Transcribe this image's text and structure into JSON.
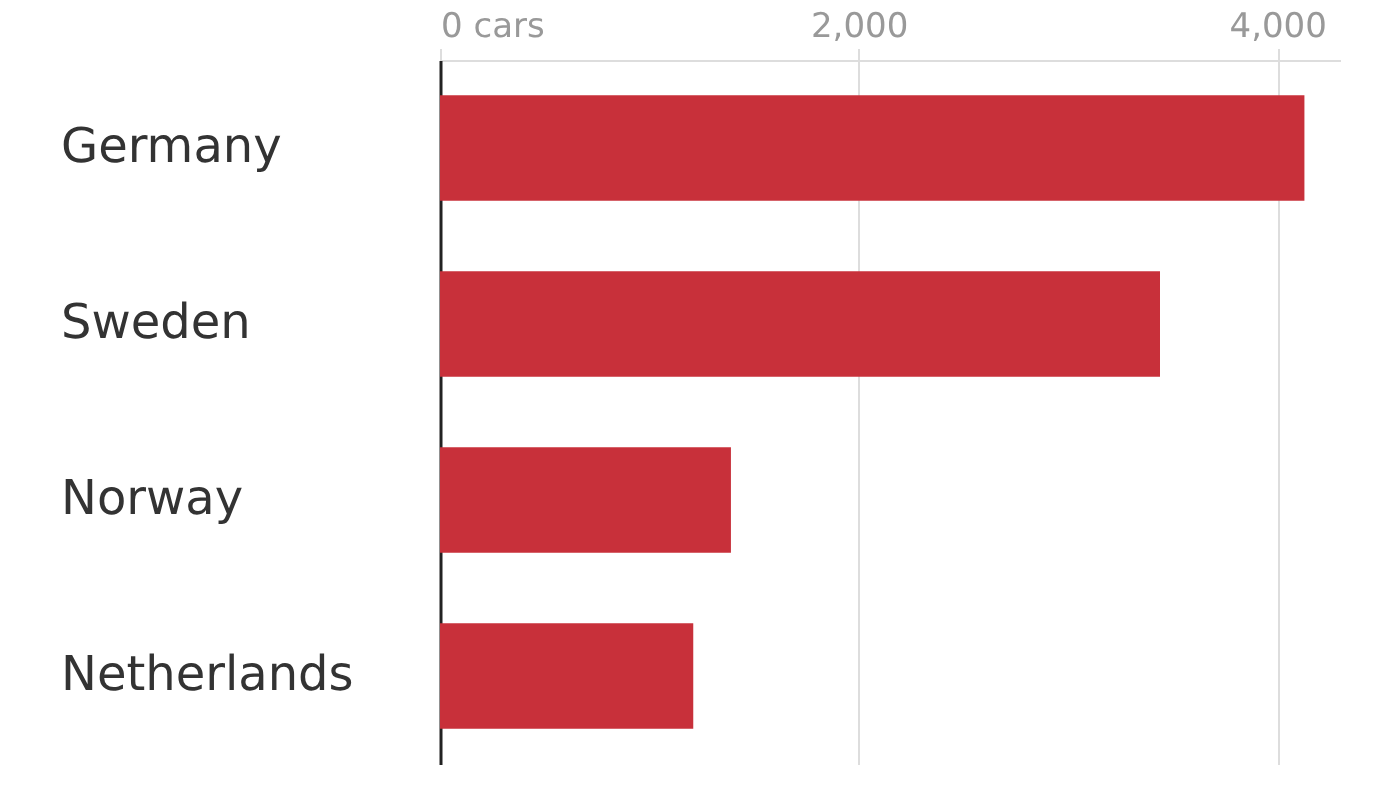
{
  "chart_data": {
    "type": "bar",
    "orientation": "horizontal",
    "categories": [
      "Germany",
      "Sweden",
      "Norway",
      "Netherlands"
    ],
    "values": [
      4130,
      3440,
      1390,
      1210
    ],
    "color": "#c8303a",
    "xlim": [
      0,
      4300
    ],
    "xticks": [
      {
        "value": 0,
        "label": "0 cars"
      },
      {
        "value": 2000,
        "label": "2,000"
      },
      {
        "value": 4000,
        "label": "4,000"
      }
    ],
    "grid": "x"
  }
}
